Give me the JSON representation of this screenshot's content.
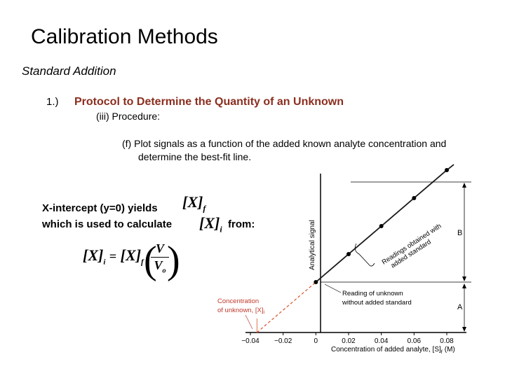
{
  "slide": {
    "title": "Calibration Methods",
    "subtitle": "Standard Addition",
    "item_number": "1.)",
    "item_heading": "Protocol to Determine the Quantity of an Unknown",
    "sub_item": "(iii)  Procedure:",
    "step_label": "(f)",
    "step_text_line1": "Plot signals as a function of the added known analyte concentration and",
    "step_text_line2": "determine the best-fit line.",
    "intercept_line1": "X-intercept (y=0) yields",
    "intercept_line2": "which is used to calculate",
    "intercept_from": "from:",
    "xf_symbol": "X",
    "xf_subscript": "f",
    "xi_symbol": "X",
    "xi_subscript": "i",
    "eq": {
      "lhs_symbol": "X",
      "lhs_subscript": "i",
      "equals": "=",
      "rhs_symbol": "X",
      "rhs_subscript": "f",
      "numerator": "V",
      "denominator": "V",
      "denominator_subscript": "o"
    }
  },
  "figure": {
    "ylabel": "Analytical signal",
    "xlabel": "Concentration of added analyte, [S]",
    "xlabel_subscript": "f",
    "xlabel_unit": "(M)",
    "annotation_readings": "Readings obtained with",
    "annotation_readings2": "added standard",
    "annotation_unknown1": "Reading of unknown",
    "annotation_unknown2": "without added standard",
    "annotation_conc1": "Concentration",
    "annotation_conc2": "of unknown, [X]",
    "annotation_conc_sub": "i",
    "label_A": "A",
    "label_B": "B",
    "colors": {
      "main_line": "#1a1a1a",
      "extrapolation": "#d9532a",
      "annotation": "#c0392b"
    }
  },
  "chart_data": {
    "type": "line",
    "x_ticks": [
      "-0.04",
      "-0.02",
      "0",
      "0.02",
      "0.04",
      "0.06",
      "0.08"
    ],
    "xlim": [
      -0.04,
      0.08
    ],
    "series": [
      {
        "x": [
          0,
          0.02,
          0.04,
          0.06,
          0.08
        ],
        "y": [
          1.0,
          1.556,
          2.111,
          2.667,
          3.222
        ]
      }
    ],
    "extrapolation": {
      "x": [
        -0.036,
        0
      ],
      "y": [
        0,
        1.0
      ]
    },
    "x_intercept": -0.036
  }
}
